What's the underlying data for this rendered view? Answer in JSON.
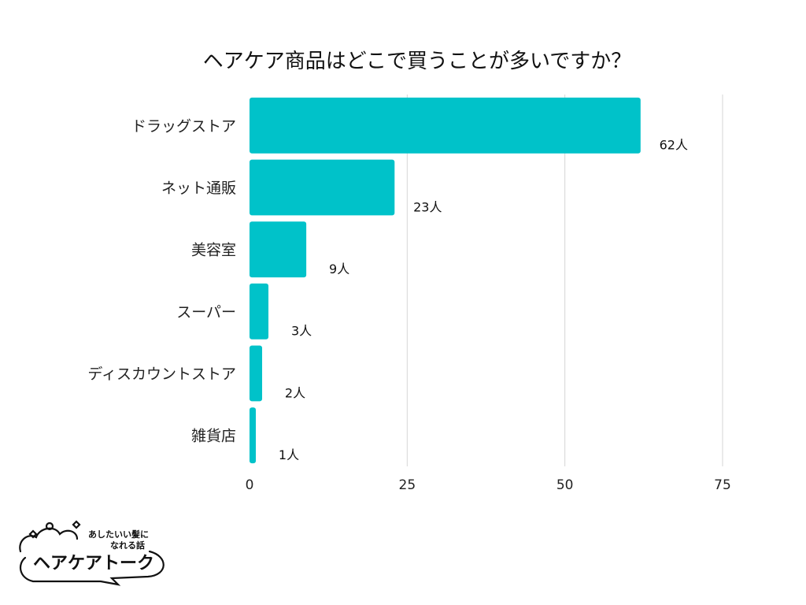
{
  "chart_data": {
    "type": "bar",
    "orientation": "horizontal",
    "title": "ヘアケア商品はどこで買うことが多いですか？",
    "categories": [
      "ドラッグストア",
      "ネット通販",
      "美容室",
      "スーパー",
      "ディスカウントストア",
      "雑貨店"
    ],
    "values": [
      62,
      23,
      9,
      3,
      2,
      1
    ],
    "value_suffix": "人",
    "data_labels": [
      "62人",
      "23人",
      "9人",
      "3人",
      "2人",
      "1人"
    ],
    "xlim": [
      0,
      75
    ],
    "xticks": [
      0,
      25,
      50,
      75
    ],
    "xtick_labels": [
      "0",
      "25",
      "50",
      "75"
    ],
    "grid": true,
    "bar_color": "#00C2C9"
  },
  "logo": {
    "main_text": "ヘアケアトーク",
    "sub_text_line1": "あしたいい髪に",
    "sub_text_line2": "なれる話"
  }
}
